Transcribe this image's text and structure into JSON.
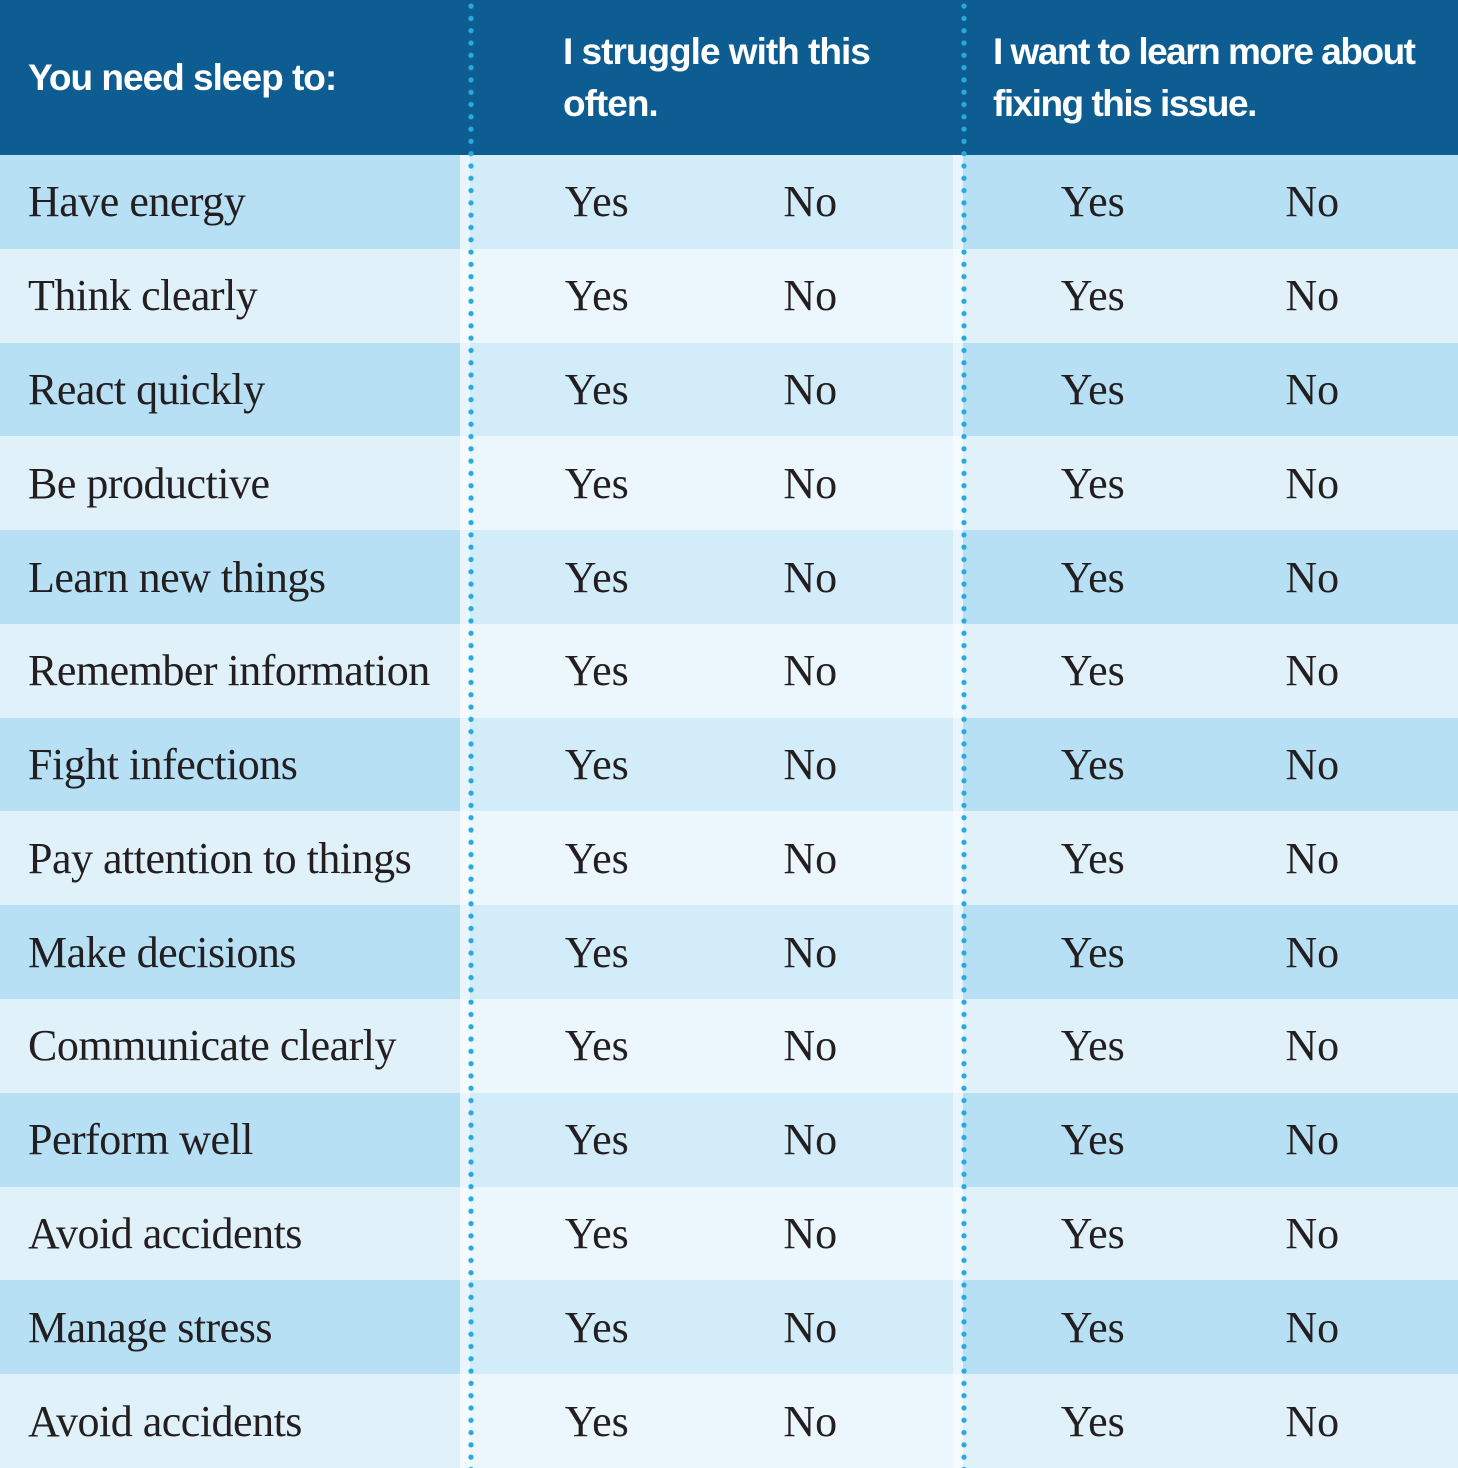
{
  "table": {
    "header": {
      "col1": "You need sleep to:",
      "col2": "I struggle with this often.",
      "col3": "I want to learn more about fixing this issue."
    },
    "options": {
      "yes": "Yes",
      "no": "No"
    },
    "rows": [
      {
        "label": "Have energy"
      },
      {
        "label": "Think clearly"
      },
      {
        "label": "React quickly"
      },
      {
        "label": "Be productive"
      },
      {
        "label": "Learn new things"
      },
      {
        "label": "Remember information"
      },
      {
        "label": "Fight infections"
      },
      {
        "label": "Pay attention to things"
      },
      {
        "label": "Make decisions"
      },
      {
        "label": "Communicate clearly"
      },
      {
        "label": "Perform well"
      },
      {
        "label": "Avoid accidents"
      },
      {
        "label": "Manage stress"
      },
      {
        "label": "Avoid accidents"
      }
    ]
  },
  "colors": {
    "header_bg": "#0d5d92",
    "header_text": "#ffffff",
    "dot": "#29aade",
    "row_odd_outer": "#b7e0f5",
    "row_odd_middle": "#d3ecf9",
    "row_odd_gutter": "#e9f5fc",
    "row_even_outer": "#e0f1fa",
    "row_even_middle": "#ebf6fd",
    "row_even_gutter": "#f4fafe",
    "body_text": "#231f20"
  }
}
